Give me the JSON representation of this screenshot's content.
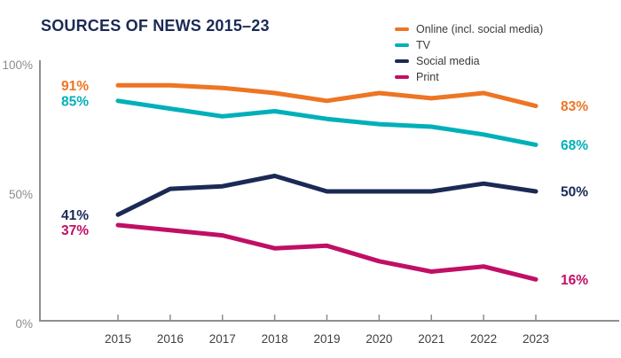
{
  "title": "SOURCES OF NEWS 2015–23",
  "colors": {
    "title": "#1B2A55",
    "axis": "#8F8F8F",
    "y_tick_label": "#8C8C8C",
    "x_tick_label": "#3F3F3F",
    "background": "#FFFFFF"
  },
  "chart_data": {
    "type": "line",
    "title": "SOURCES OF NEWS 2015–23",
    "x": [
      2015,
      2016,
      2017,
      2018,
      2019,
      2020,
      2021,
      2022,
      2023
    ],
    "series": [
      {
        "name": "Online (incl. social media)",
        "color": "#ED7524",
        "values": [
          91,
          91,
          90,
          88,
          85,
          88,
          86,
          88,
          83
        ],
        "start_label": "91%",
        "end_label": "83%"
      },
      {
        "name": "TV",
        "color": "#00B0B9",
        "values": [
          85,
          82,
          79,
          81,
          78,
          76,
          75,
          72,
          68
        ],
        "start_label": "85%",
        "end_label": "68%"
      },
      {
        "name": "Social media",
        "color": "#1B2A55",
        "values": [
          41,
          51,
          52,
          56,
          50,
          50,
          50,
          53,
          50
        ],
        "start_label": "41%",
        "end_label": "50%"
      },
      {
        "name": "Print",
        "color": "#C00F66",
        "values": [
          37,
          35,
          33,
          28,
          29,
          23,
          19,
          21,
          16
        ],
        "start_label": "37%",
        "end_label": "16%"
      }
    ],
    "ylim": [
      0,
      100
    ],
    "yticks": [
      {
        "label": "0%",
        "value": 0
      },
      {
        "label": "50%",
        "value": 50
      },
      {
        "label": "100%",
        "value": 100
      }
    ],
    "xlabel": "",
    "ylabel": "",
    "legend_position": "top-right",
    "grid": false
  }
}
